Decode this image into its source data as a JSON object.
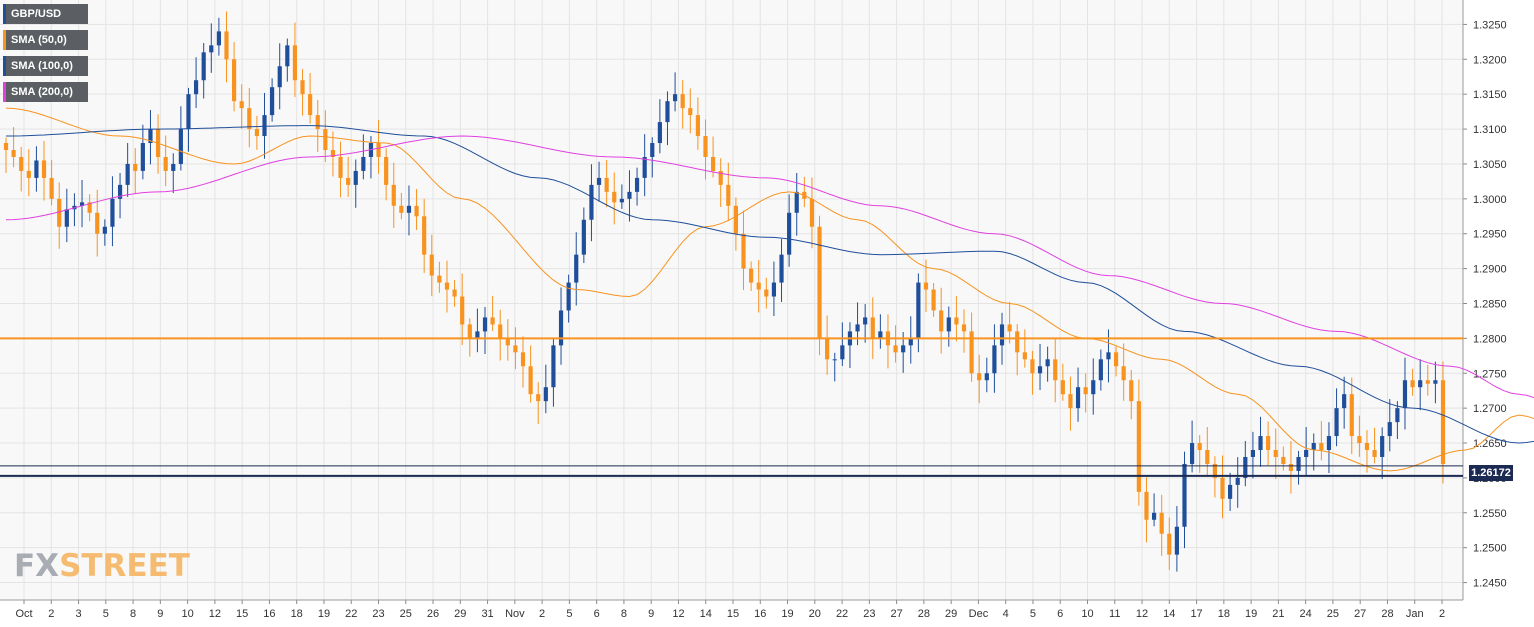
{
  "legend": [
    {
      "label": "GBP/USD",
      "color": "#1f4e9a"
    },
    {
      "label": "SMA (50,0)",
      "color": "#f7931e"
    },
    {
      "label": "SMA (100,0)",
      "color": "#1f4e9a"
    },
    {
      "label": "SMA (200,0)",
      "color": "#e040e0"
    }
  ],
  "logo": {
    "part1": "FX",
    "part2": "STREET"
  },
  "current_price_label": "1.26172",
  "colors": {
    "bull": "#1f4e9a",
    "bear": "#f7931e",
    "sma50": "#f7931e",
    "sma100": "#1f4e9a",
    "sma200": "#e040e0",
    "resistance": "#f7931e",
    "support": "#1b2a52",
    "background": "#f8f8f8",
    "grid": "#e4e4e4"
  },
  "chart_data": {
    "type": "candlestick",
    "symbol": "GBP/USD",
    "ylim": [
      1.2425,
      1.3285
    ],
    "y_ticks": [
      "1.3250",
      "1.3200",
      "1.3150",
      "1.3100",
      "1.3050",
      "1.3000",
      "1.2950",
      "1.2900",
      "1.2850",
      "1.2800",
      "1.2750",
      "1.2700",
      "1.2650",
      "1.2600",
      "1.2550",
      "1.2500",
      "1.2450"
    ],
    "x_labels": [
      "Oct",
      "2",
      "3",
      "5",
      "8",
      "9",
      "10",
      "12",
      "15",
      "16",
      "18",
      "19",
      "22",
      "23",
      "25",
      "26",
      "29",
      "31",
      "Nov",
      "2",
      "5",
      "6",
      "8",
      "9",
      "12",
      "14",
      "15",
      "16",
      "19",
      "20",
      "22",
      "23",
      "27",
      "28",
      "29",
      "Dec",
      "4",
      "5",
      "6",
      "10",
      "11",
      "12",
      "14",
      "17",
      "18",
      "19",
      "21",
      "24",
      "25",
      "27",
      "28",
      "Jan",
      "2"
    ],
    "horizontal_levels": {
      "resistance": 1.28,
      "current": 1.26172,
      "support": 1.2603
    },
    "close": [
      1.307,
      1.306,
      1.304,
      1.303,
      1.3055,
      1.303,
      1.3,
      1.296,
      1.2985,
      1.299,
      1.2995,
      1.298,
      1.295,
      1.296,
      1.3,
      1.302,
      1.305,
      1.304,
      1.308,
      1.31,
      1.306,
      1.304,
      1.305,
      1.31,
      1.315,
      1.317,
      1.321,
      1.322,
      1.324,
      1.32,
      1.314,
      1.313,
      1.31,
      1.309,
      1.312,
      1.316,
      1.319,
      1.322,
      1.317,
      1.315,
      1.312,
      1.31,
      1.307,
      1.306,
      1.303,
      1.302,
      1.304,
      1.306,
      1.308,
      1.306,
      1.302,
      1.299,
      1.298,
      1.299,
      1.2975,
      1.292,
      1.289,
      1.288,
      1.287,
      1.286,
      1.282,
      1.28,
      1.281,
      1.283,
      1.282,
      1.28,
      1.279,
      1.278,
      1.276,
      1.272,
      1.271,
      1.273,
      1.279,
      1.284,
      1.288,
      1.292,
      1.297,
      1.302,
      1.303,
      1.301,
      1.2995,
      1.3,
      1.301,
      1.303,
      1.306,
      1.308,
      1.311,
      1.314,
      1.315,
      1.313,
      1.312,
      1.309,
      1.306,
      1.304,
      1.302,
      1.299,
      1.295,
      1.29,
      1.288,
      1.287,
      1.286,
      1.288,
      1.292,
      1.298,
      1.301,
      1.3,
      1.296,
      1.28,
      1.277,
      1.277,
      1.279,
      1.281,
      1.282,
      1.283,
      1.28,
      1.281,
      1.279,
      1.278,
      1.279,
      1.28,
      1.288,
      1.287,
      1.284,
      1.281,
      1.283,
      1.282,
      1.281,
      1.275,
      1.274,
      1.275,
      1.279,
      1.282,
      1.281,
      1.278,
      1.277,
      1.275,
      1.276,
      1.277,
      1.274,
      1.272,
      1.27,
      1.273,
      1.272,
      1.274,
      1.277,
      1.278,
      1.276,
      1.274,
      1.271,
      1.258,
      1.254,
      1.255,
      1.252,
      1.249,
      1.253,
      1.262,
      1.265,
      1.264,
      1.262,
      1.26,
      1.257,
      1.259,
      1.26,
      1.263,
      1.264,
      1.266,
      1.264,
      1.263,
      1.262,
      1.261,
      1.263,
      1.264,
      1.265,
      1.264,
      1.266,
      1.27,
      1.272,
      1.266,
      1.265,
      1.264,
      1.263,
      1.266,
      1.268,
      1.27,
      1.274,
      1.273,
      1.274,
      1.2735,
      1.274,
      1.262
    ],
    "series": [
      {
        "name": "SMA (50,0)",
        "anchors": [
          [
            0,
            1.313
          ],
          [
            15,
            1.309
          ],
          [
            30,
            1.305
          ],
          [
            40,
            1.309
          ],
          [
            50,
            1.308
          ],
          [
            60,
            1.3
          ],
          [
            75,
            1.287
          ],
          [
            82,
            1.286
          ],
          [
            92,
            1.296
          ],
          [
            103,
            1.301
          ],
          [
            112,
            1.297
          ],
          [
            122,
            1.29
          ],
          [
            132,
            1.285
          ],
          [
            142,
            1.28
          ],
          [
            152,
            1.277
          ],
          [
            162,
            1.272
          ],
          [
            172,
            1.264
          ],
          [
            182,
            1.261
          ],
          [
            192,
            1.264
          ],
          [
            199,
            1.269
          ],
          [
            203,
            1.268
          ]
        ]
      },
      {
        "name": "SMA (100,0)",
        "anchors": [
          [
            0,
            1.309
          ],
          [
            20,
            1.31
          ],
          [
            40,
            1.3105
          ],
          [
            55,
            1.309
          ],
          [
            70,
            1.303
          ],
          [
            85,
            1.297
          ],
          [
            100,
            1.2945
          ],
          [
            115,
            1.292
          ],
          [
            130,
            1.2925
          ],
          [
            142,
            1.288
          ],
          [
            155,
            1.281
          ],
          [
            170,
            1.276
          ],
          [
            185,
            1.27
          ],
          [
            199,
            1.265
          ],
          [
            203,
            1.2655
          ]
        ]
      },
      {
        "name": "SMA (200,0)",
        "anchors": [
          [
            0,
            1.297
          ],
          [
            20,
            1.301
          ],
          [
            40,
            1.306
          ],
          [
            60,
            1.309
          ],
          [
            80,
            1.306
          ],
          [
            100,
            1.303
          ],
          [
            115,
            1.299
          ],
          [
            130,
            1.295
          ],
          [
            145,
            1.289
          ],
          [
            160,
            1.285
          ],
          [
            175,
            1.281
          ],
          [
            190,
            1.276
          ],
          [
            199,
            1.272
          ],
          [
            203,
            1.271
          ]
        ]
      }
    ]
  }
}
